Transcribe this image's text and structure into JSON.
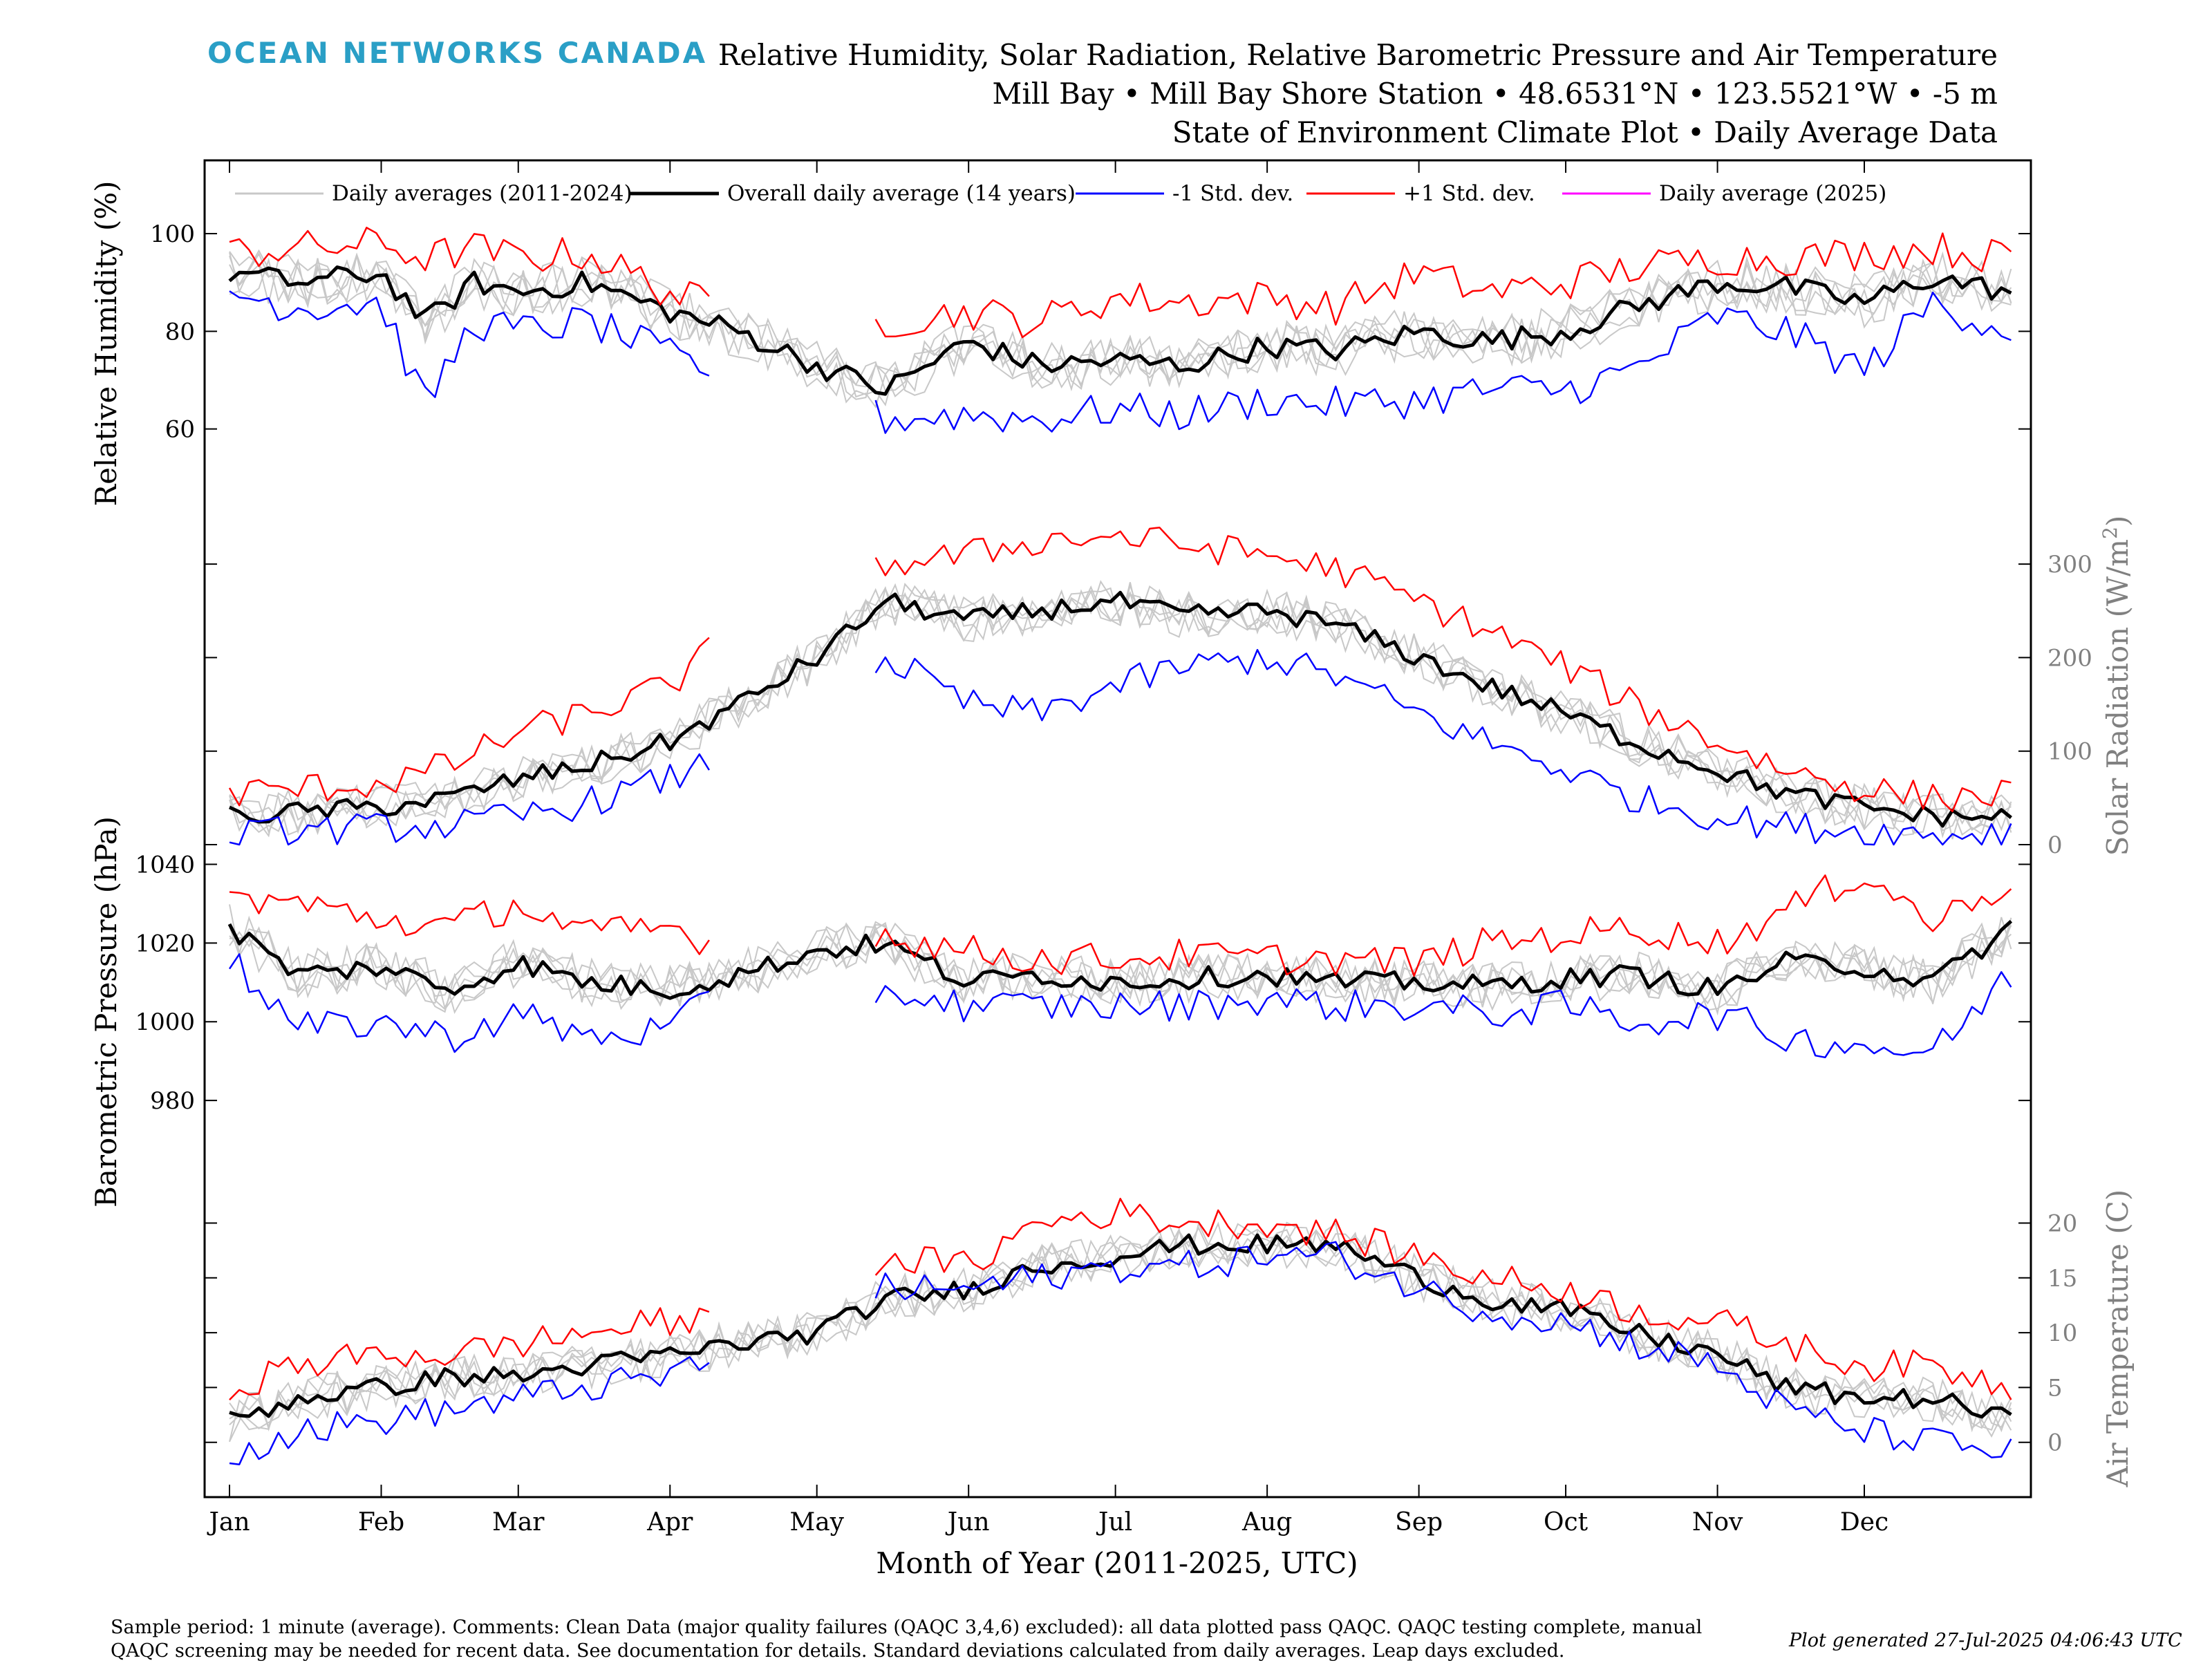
{
  "header": {
    "logo_text": "OCEAN NETWORKS CANADA",
    "title_line1": "Relative Humidity, Solar Radiation, Relative Barometric Pressure and Air Temperature",
    "title_line2": "Mill Bay • Mill Bay Shore Station • 48.6531°N • 123.5521°W • -5 m",
    "title_line3": "State of Environment Climate Plot • Daily Average Data"
  },
  "legend": {
    "items": [
      {
        "label": "Daily averages (2011-2024)",
        "color": "#c8c8c8"
      },
      {
        "label": "Overall daily average (14 years)",
        "color": "#000000"
      },
      {
        "label": "-1 Std. dev.",
        "color": "#0000ff"
      },
      {
        "label": "+1 Std. dev.",
        "color": "#ff0000"
      },
      {
        "label": "Daily average (2025)",
        "color": "#ff00ff"
      }
    ]
  },
  "footer": {
    "comment_line1": "Sample period: 1 minute (average). Comments: Clean Data (major quality failures (QAQC 3,4,6) excluded): all data plotted pass QAQC. QAQC testing complete, manual",
    "comment_line2": "QAQC screening may be needed for recent data. See documentation for details. Standard deviations calculated from daily averages. Leap days excluded.",
    "generated": "Plot generated 27-Jul-2025 04:06:43 UTC"
  },
  "chart_data": [
    {
      "type": "line",
      "panel": "relative-humidity",
      "ylabel": "Relative Humidity (%)",
      "y_axis_side": "left",
      "ylim": [
        40,
        115
      ],
      "yticks": [
        60,
        80,
        100
      ],
      "xlabel": "Month of Year (2011-2025, UTC)",
      "x_unit": "month",
      "x_tick_labels": [
        "Jan",
        "Feb",
        "Mar",
        "Apr",
        "May",
        "Jun",
        "Jul",
        "Aug",
        "Sep",
        "Oct",
        "Nov",
        "Dec"
      ],
      "gaps": [
        [
          "Apr 10",
          "May 12"
        ]
      ],
      "series": [
        {
          "name": "Overall daily average (14 years)",
          "color": "#000000",
          "x": [
            "Jan 1",
            "Jan 15",
            "Feb 1",
            "Feb 10",
            "Feb 20",
            "Mar 1",
            "Mar 15",
            "Apr 1",
            "Apr 15",
            "May 1",
            "May 15",
            "Jun 1",
            "Jun 15",
            "Jul 1",
            "Jul 15",
            "Aug 1",
            "Aug 15",
            "Sep 1",
            "Sep 15",
            "Oct 1",
            "Oct 15",
            "Nov 1",
            "Nov 15",
            "Dec 1",
            "Dec 15",
            "Dec 31"
          ],
          "y": [
            92,
            90,
            92,
            82,
            90,
            88,
            90,
            84,
            80,
            73,
            68,
            78,
            73,
            74,
            73,
            77,
            76,
            80,
            78,
            80,
            85,
            90,
            89,
            86,
            91,
            88
          ]
        },
        {
          "name": "+1 Std. dev.",
          "color": "#ff0000",
          "x": [
            "Jan 1",
            "Jan 15",
            "Feb 1",
            "Feb 10",
            "Feb 20",
            "Mar 1",
            "Mar 15",
            "Apr 1",
            "Apr 10",
            "May 15",
            "Jun 1",
            "Jun 15",
            "Jul 1",
            "Jul 15",
            "Aug 1",
            "Aug 15",
            "Sep 1",
            "Sep 15",
            "Oct 1",
            "Oct 15",
            "Nov 1",
            "Nov 15",
            "Dec 1",
            "Dec 15",
            "Dec 31"
          ],
          "y": [
            96,
            97,
            98,
            95,
            97,
            95,
            96,
            88,
            85,
            82,
            84,
            82,
            87,
            86,
            87,
            85,
            92,
            88,
            90,
            93,
            95,
            95,
            96,
            97,
            95
          ]
        },
        {
          "name": "-1 Std. dev.",
          "color": "#0000ff",
          "x": [
            "Jan 1",
            "Jan 15",
            "Feb 1",
            "Feb 10",
            "Feb 20",
            "Mar 1",
            "Mar 15",
            "Apr 1",
            "Apr 10",
            "May 15",
            "Jun 1",
            "Jun 15",
            "Jul 1",
            "Jul 15",
            "Aug 1",
            "Aug 15",
            "Sep 1",
            "Sep 15",
            "Oct 1",
            "Oct 15",
            "Nov 1",
            "Nov 15",
            "Dec 1",
            "Dec 15",
            "Dec 31"
          ],
          "y": [
            88,
            85,
            86,
            65,
            82,
            80,
            82,
            75,
            72,
            62,
            63,
            62,
            64,
            63,
            66,
            65,
            66,
            68,
            68,
            72,
            83,
            80,
            72,
            86,
            80
          ]
        }
      ]
    },
    {
      "type": "line",
      "panel": "solar-radiation",
      "ylabel": "Solar Radiation (W/m²)",
      "ylabel_main": "Solar Radiation (W/m",
      "ylabel_sup": "2",
      "ylabel_close": ")",
      "y_axis_side": "right",
      "ylim": [
        0,
        340
      ],
      "yticks": [
        0,
        100,
        200,
        300
      ],
      "series": [
        {
          "name": "Overall daily average (14 years)",
          "color": "#000000",
          "x": [
            "Jan 1",
            "Jan 15",
            "Feb 1",
            "Feb 15",
            "Mar 1",
            "Mar 15",
            "Apr 1",
            "Apr 15",
            "May 1",
            "May 15",
            "Jun 1",
            "Jun 15",
            "Jul 1",
            "Jul 15",
            "Aug 1",
            "Aug 15",
            "Sep 1",
            "Sep 15",
            "Oct 1",
            "Oct 15",
            "Nov 1",
            "Nov 15",
            "Dec 1",
            "Dec 15",
            "Dec 31"
          ],
          "y": [
            30,
            35,
            40,
            50,
            70,
            85,
            110,
            150,
            200,
            260,
            240,
            250,
            260,
            245,
            250,
            235,
            200,
            170,
            140,
            110,
            80,
            55,
            40,
            30,
            30
          ]
        },
        {
          "name": "+1 Std. dev.",
          "color": "#ff0000",
          "x": [
            "Jan 1",
            "Jan 15",
            "Feb 1",
            "Feb 15",
            "Mar 1",
            "Mar 15",
            "Apr 1",
            "Apr 10",
            "May 15",
            "Jun 1",
            "Jun 15",
            "Jul 1",
            "Jul 15",
            "Aug 1",
            "Aug 15",
            "Sep 1",
            "Sep 15",
            "Oct 1",
            "Oct 15",
            "Nov 1",
            "Nov 15",
            "Dec 1",
            "Dec 15",
            "Dec 31"
          ],
          "y": [
            55,
            60,
            65,
            85,
            120,
            140,
            170,
            210,
            300,
            310,
            325,
            330,
            320,
            310,
            295,
            260,
            230,
            190,
            150,
            110,
            80,
            60,
            50,
            55
          ]
        },
        {
          "name": "-1 Std. dev.",
          "color": "#0000ff",
          "x": [
            "Jan 1",
            "Jan 15",
            "Feb 1",
            "Feb 15",
            "Mar 1",
            "Mar 15",
            "Apr 1",
            "Apr 10",
            "May 15",
            "Jun 1",
            "Jun 15",
            "Jul 1",
            "Jul 15",
            "Aug 1",
            "Aug 15",
            "Sep 1",
            "Sep 15",
            "Oct 1",
            "Oct 15",
            "Nov 1",
            "Nov 15",
            "Dec 1",
            "Dec 15",
            "Dec 31"
          ],
          "y": [
            10,
            15,
            18,
            20,
            30,
            45,
            70,
            90,
            200,
            150,
            140,
            170,
            190,
            200,
            180,
            140,
            110,
            80,
            50,
            30,
            20,
            15,
            10,
            15
          ]
        }
      ]
    },
    {
      "type": "line",
      "panel": "barometric-pressure",
      "ylabel": "Barometric Pressure (hPa)",
      "y_axis_side": "left",
      "ylim": [
        960,
        1045
      ],
      "yticks": [
        980,
        1000,
        1020,
        1040
      ],
      "series": [
        {
          "name": "Overall daily average (14 years)",
          "color": "#000000",
          "x": [
            "Jan 1",
            "Jan 15",
            "Feb 1",
            "Feb 15",
            "Mar 1",
            "Mar 15",
            "Apr 1",
            "Apr 15",
            "May 1",
            "May 15",
            "Jun 1",
            "Jun 15",
            "Jul 1",
            "Jul 15",
            "Aug 1",
            "Aug 15",
            "Sep 1",
            "Sep 15",
            "Oct 1",
            "Oct 15",
            "Nov 1",
            "Nov 15",
            "Dec 1",
            "Dec 15",
            "Dec 31"
          ],
          "y": [
            1024,
            1012,
            1014,
            1008,
            1015,
            1010,
            1008,
            1012,
            1018,
            1020,
            1010,
            1012,
            1010,
            1011,
            1012,
            1010,
            1010,
            1009,
            1011,
            1012,
            1008,
            1015,
            1014,
            1010,
            1024
          ]
        },
        {
          "name": "+1 Std. dev.",
          "color": "#ff0000",
          "x": [
            "Jan 1",
            "Jan 15",
            "Feb 1",
            "Feb 15",
            "Mar 1",
            "Mar 15",
            "Apr 1",
            "Apr 10",
            "May 15",
            "Jun 1",
            "Jun 15",
            "Jul 1",
            "Jul 15",
            "Aug 1",
            "Aug 15",
            "Sep 1",
            "Sep 15",
            "Oct 1",
            "Oct 15",
            "Nov 1",
            "Nov 15",
            "Dec 1",
            "Dec 15",
            "Dec 31"
          ],
          "y": [
            1032,
            1030,
            1026,
            1024,
            1030,
            1022,
            1024,
            1020,
            1022,
            1018,
            1016,
            1016,
            1017,
            1016,
            1016,
            1015,
            1020,
            1022,
            1024,
            1020,
            1028,
            1038,
            1025,
            1036
          ]
        },
        {
          "name": "-1 Std. dev.",
          "color": "#0000ff",
          "x": [
            "Jan 1",
            "Jan 15",
            "Feb 1",
            "Feb 15",
            "Mar 1",
            "Mar 15",
            "Apr 1",
            "Apr 10",
            "May 15",
            "Jun 1",
            "Jun 15",
            "Jul 1",
            "Jul 15",
            "Aug 1",
            "Aug 15",
            "Sep 1",
            "Sep 15",
            "Oct 1",
            "Oct 15",
            "Nov 1",
            "Nov 15",
            "Dec 1",
            "Dec 15",
            "Dec 31"
          ],
          "y": [
            1016,
            998,
            1000,
            996,
            1002,
            996,
            998,
            1006,
            1008,
            1004,
            1004,
            1004,
            1004,
            1006,
            1004,
            1004,
            1002,
            1004,
            1000,
            1002,
            996,
            994,
            992,
            1012
          ]
        }
      ]
    },
    {
      "type": "line",
      "panel": "air-temperature",
      "ylabel": "Air Temperature (C)",
      "y_axis_side": "right",
      "ylim": [
        -5,
        24
      ],
      "yticks": [
        0,
        5,
        10,
        15,
        20
      ],
      "series": [
        {
          "name": "Overall daily average (14 years)",
          "color": "#000000",
          "x": [
            "Jan 1",
            "Jan 15",
            "Feb 1",
            "Feb 15",
            "Mar 1",
            "Mar 15",
            "Apr 1",
            "Apr 15",
            "May 1",
            "May 15",
            "Jun 1",
            "Jun 15",
            "Jul 1",
            "Jul 15",
            "Aug 1",
            "Aug 15",
            "Sep 1",
            "Sep 15",
            "Oct 1",
            "Oct 15",
            "Nov 1",
            "Nov 15",
            "Dec 1",
            "Dec 15",
            "Dec 31"
          ],
          "y": [
            2,
            4,
            5,
            6,
            6,
            7,
            8,
            9,
            10,
            13,
            14,
            16,
            17,
            18,
            18,
            18,
            15,
            13,
            12,
            10,
            8,
            5,
            4,
            4,
            2
          ]
        },
        {
          "name": "+1 Std. dev.",
          "color": "#ff0000",
          "x": [
            "Jan 1",
            "Jan 15",
            "Feb 1",
            "Feb 15",
            "Mar 1",
            "Mar 15",
            "Apr 1",
            "Apr 10",
            "May 15",
            "Jun 1",
            "Jun 15",
            "Jul 1",
            "Jul 15",
            "Aug 1",
            "Aug 15",
            "Sep 1",
            "Sep 15",
            "Oct 1",
            "Oct 15",
            "Nov 1",
            "Nov 15",
            "Dec 1",
            "Dec 15",
            "Dec 31"
          ],
          "y": [
            5,
            7,
            8,
            8,
            9,
            10,
            11,
            11,
            17,
            16,
            20,
            21,
            20,
            20,
            19,
            17,
            15,
            14,
            12,
            11,
            9,
            7,
            7,
            5
          ]
        },
        {
          "name": "-1 Std. dev.",
          "color": "#0000ff",
          "x": [
            "Jan 1",
            "Jan 15",
            "Feb 1",
            "Feb 15",
            "Mar 1",
            "Mar 15",
            "Apr 1",
            "Apr 10",
            "May 15",
            "Jun 1",
            "Jun 15",
            "Jul 1",
            "Jul 15",
            "Aug 1",
            "Aug 15",
            "Sep 1",
            "Sep 15",
            "Oct 1",
            "Oct 15",
            "Nov 1",
            "Nov 15",
            "Dec 1",
            "Dec 15",
            "Dec 31"
          ],
          "y": [
            -1,
            1,
            2,
            3,
            4,
            5,
            6,
            8,
            14,
            14,
            15,
            16,
            16,
            17,
            17,
            14,
            12,
            11,
            9,
            7,
            3,
            1,
            0,
            -1
          ]
        }
      ]
    }
  ],
  "x_axis": {
    "label": "Month of Year (2011-2025, UTC)",
    "ticks": [
      "Jan",
      "Feb",
      "Mar",
      "Apr",
      "May",
      "Jun",
      "Jul",
      "Aug",
      "Sep",
      "Oct",
      "Nov",
      "Dec"
    ]
  }
}
